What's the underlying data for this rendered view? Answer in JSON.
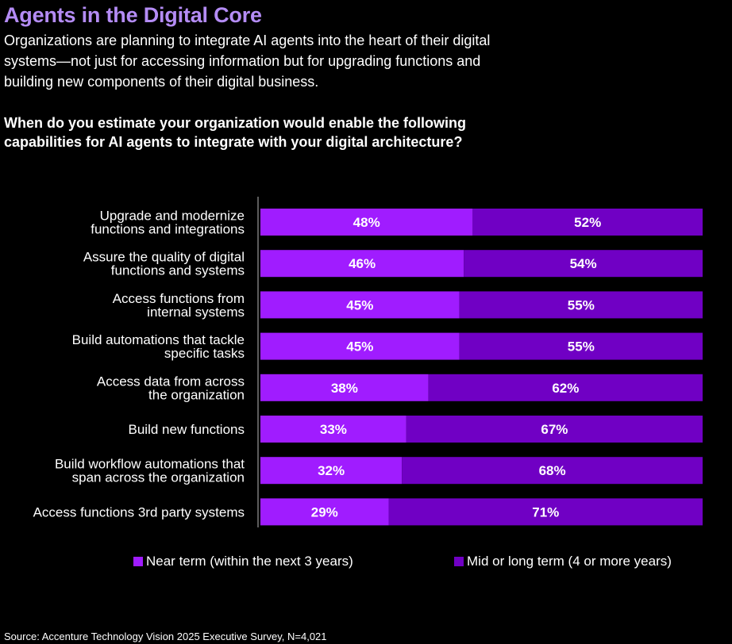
{
  "header": {
    "title": "Agents in the Digital Core",
    "subtitle": "Organizations are planning to integrate AI agents into the heart of their digital systems—not just for accessing information but for upgrading functions and building new components of their digital business.",
    "question": "When do you estimate your organization would enable the following capabilities for AI agents to integrate with your digital architecture?"
  },
  "colors": {
    "near": "#a01cff",
    "mid": "#7000c4",
    "title": "#b48cf5"
  },
  "chart_data": {
    "type": "bar",
    "orientation": "horizontal",
    "stacked": true,
    "xlim": [
      0,
      100
    ],
    "grid": false,
    "legend_position": "bottom",
    "categories": [
      [
        "Upgrade and modernize",
        "functions and integrations"
      ],
      [
        "Assure the quality of digital",
        "functions and systems"
      ],
      [
        "Access functions from",
        "internal systems"
      ],
      [
        "Build automations that tackle",
        "specific tasks"
      ],
      [
        "Access data from across",
        "the organization"
      ],
      [
        "Build new functions"
      ],
      [
        "Build workflow automations that",
        "span across the organization"
      ],
      [
        "Access functions 3rd party systems"
      ]
    ],
    "series": [
      {
        "name": "Near term (within the next 3 years)",
        "values": [
          48,
          46,
          45,
          45,
          38,
          33,
          32,
          29
        ]
      },
      {
        "name": "Mid or long term (4 or more years)",
        "values": [
          52,
          54,
          55,
          55,
          62,
          67,
          68,
          71
        ]
      }
    ],
    "value_suffix": "%"
  },
  "legend": {
    "near_label": "Near term (within the next 3 years)",
    "mid_label": "Mid or long term (4 or more years)"
  },
  "footer": {
    "source": "Source: Accenture Technology Vision 2025 Executive Survey, N=4,021"
  }
}
